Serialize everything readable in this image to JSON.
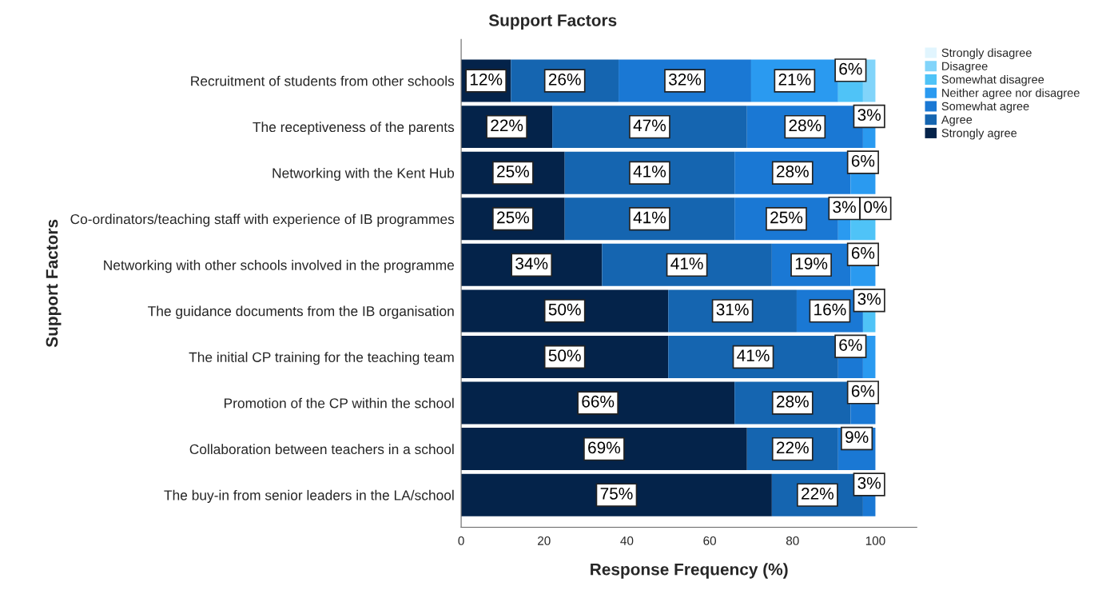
{
  "chart_data": {
    "type": "bar",
    "orientation": "horizontal",
    "stacked": true,
    "title": "Support Factors",
    "xlabel": "Response Frequency (%)",
    "ylabel": "Support Factors",
    "categories": [
      "Recruitment of students from other schools",
      "The receptiveness of the parents",
      "Networking with the Kent Hub",
      "Co-ordinators/teaching staff with experience of IB programmes",
      "Networking with other schools involved in the programme",
      "The guidance documents from the IB organisation",
      "The initial CP training for the teaching team",
      "Promotion of the CP within the school",
      "Collaboration between teachers in a school",
      "The buy-in from senior leaders in the LA/school"
    ],
    "series": [
      {
        "name": "Strongly agree",
        "color": "#04234a",
        "values": [
          12,
          22,
          25,
          25,
          34,
          50,
          50,
          66,
          69,
          75
        ],
        "value_labels": [
          "12%",
          "22%",
          "25%",
          "25%",
          "34%",
          "50%",
          "50%",
          "66%",
          "69%",
          "75%"
        ]
      },
      {
        "name": "Agree",
        "color": "#1565b0",
        "values": [
          26,
          47,
          41,
          41,
          41,
          31,
          41,
          28,
          22,
          22
        ],
        "value_labels": [
          "26%",
          "47%",
          "41%",
          "41%",
          "41%",
          "31%",
          "41%",
          "28%",
          "22%",
          "22%"
        ]
      },
      {
        "name": "Somewhat agree",
        "color": "#1a78d4",
        "values": [
          32,
          28,
          28,
          25,
          19,
          16,
          6,
          6,
          9,
          3
        ],
        "value_labels": [
          "32%",
          "28%",
          "28%",
          "25%",
          "19%",
          "16%",
          "6%",
          "6%",
          "9%",
          "3%"
        ]
      },
      {
        "name": "Neither agree nor disagree",
        "color": "#2a9af0",
        "values": [
          21,
          3,
          6,
          3,
          6,
          null,
          3,
          null,
          null,
          null
        ],
        "value_labels": [
          "21%",
          "3%",
          "6%",
          "3%",
          "6%",
          null,
          null,
          null,
          null,
          null
        ]
      },
      {
        "name": "Somewhat disagree",
        "color": "#4fc3f7",
        "values": [
          6,
          null,
          null,
          6,
          null,
          3,
          null,
          null,
          null,
          null
        ],
        "value_labels": [
          "6%",
          null,
          null,
          null,
          null,
          "3%",
          null,
          null,
          null,
          null
        ]
      },
      {
        "name": "Disagree",
        "color": "#81d4fa",
        "values": [
          3,
          null,
          null,
          null,
          null,
          null,
          null,
          null,
          null,
          null
        ],
        "value_labels": [
          null,
          null,
          null,
          null,
          null,
          null,
          null,
          null,
          null,
          null
        ]
      },
      {
        "name": "Strongly disagree",
        "color": "#e1f5fe",
        "values": [
          null,
          null,
          null,
          0,
          null,
          null,
          null,
          null,
          null,
          null
        ],
        "value_labels": [
          null,
          null,
          null,
          "0%",
          null,
          null,
          null,
          null,
          null,
          null
        ]
      }
    ],
    "xlim": [
      0,
      110
    ],
    "xticks": [
      0,
      20,
      40,
      60,
      80,
      100
    ],
    "legend": "top right",
    "grid": false
  }
}
